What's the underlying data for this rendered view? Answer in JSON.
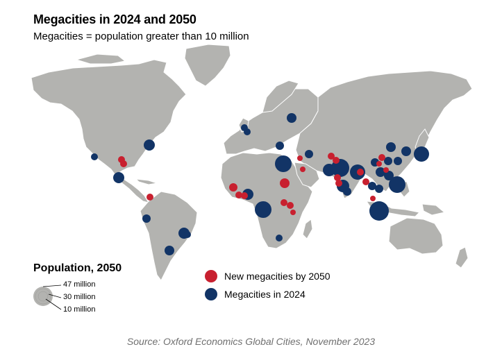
{
  "title": "Megacities in 2024 and 2050",
  "subtitle": "Megacities = population greater than 10 million",
  "legend": {
    "size_title": "Population, 2050",
    "size_labels": [
      "47 million",
      "30 million",
      "10 million"
    ],
    "new_label": "New megacities by 2050",
    "existing_label": "Megacities in 2024"
  },
  "colors": {
    "new": "#c8202f",
    "existing": "#123466",
    "land": "#b3b3b0"
  },
  "source": "Source: Oxford Economics Global Cities, November 2023"
}
